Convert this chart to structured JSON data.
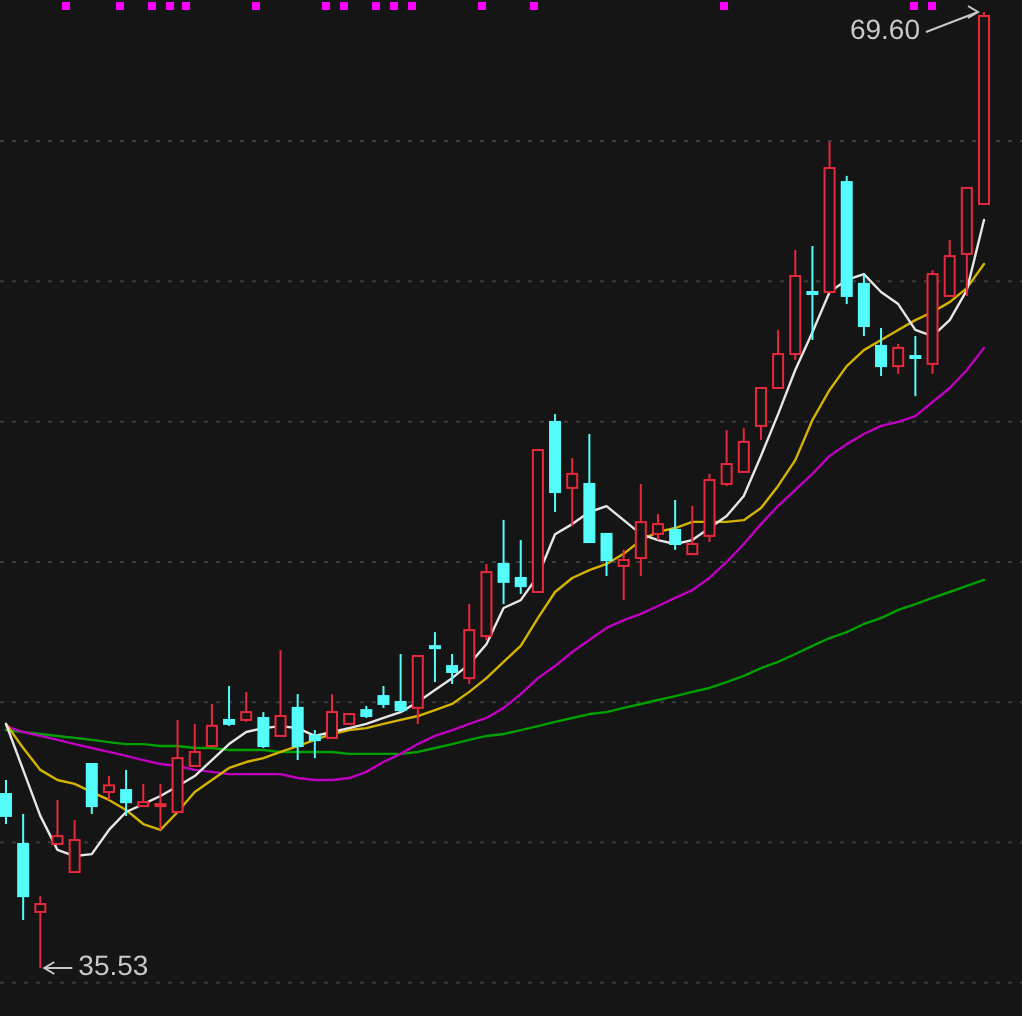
{
  "chart_data": {
    "type": "candlestick",
    "categories": [
      null,
      null,
      null,
      null,
      null,
      null,
      null,
      null,
      null,
      null,
      null,
      null,
      null,
      null,
      null,
      null,
      null,
      null,
      null,
      null,
      null,
      null,
      null,
      null,
      null,
      null,
      null,
      null,
      null,
      null,
      null,
      null,
      null,
      null,
      null,
      null,
      null,
      null,
      null,
      null,
      null,
      null,
      null,
      null,
      null,
      null,
      null,
      null,
      null,
      null,
      null,
      null,
      null,
      null,
      null,
      null,
      null,
      null
    ],
    "ohlc": [
      [
        41.73,
        42.23,
        40.66,
        40.95
      ],
      [
        39.95,
        41.02,
        37.24,
        38.09
      ],
      [
        37.53,
        38.09,
        35.53,
        37.81
      ],
      [
        39.95,
        41.52,
        39.95,
        40.23
      ],
      [
        38.95,
        40.8,
        38.95,
        40.09
      ],
      [
        42.8,
        42.8,
        41.02,
        41.3
      ],
      [
        41.8,
        42.37,
        41.52,
        42.04
      ],
      [
        41.87,
        42.59,
        40.95,
        41.44
      ],
      [
        41.3,
        42.09,
        41.3,
        41.44
      ],
      [
        41.3,
        42.09,
        40.45,
        41.37
      ],
      [
        41.09,
        44.37,
        41.09,
        43.01
      ],
      [
        42.73,
        44.23,
        42.73,
        43.23
      ],
      [
        43.44,
        44.94,
        43.44,
        44.16
      ],
      [
        44.37,
        45.58,
        44.16,
        44.23
      ],
      [
        44.37,
        45.37,
        44.3,
        44.65
      ],
      [
        44.44,
        44.65,
        43.37,
        43.44
      ],
      [
        43.8,
        46.86,
        43.8,
        44.51
      ],
      [
        44.8,
        45.29,
        42.94,
        43.44
      ],
      [
        43.8,
        44.01,
        43.01,
        43.65
      ],
      [
        43.73,
        45.29,
        43.73,
        44.65
      ],
      [
        44.23,
        44.58,
        44.23,
        44.58
      ],
      [
        44.72,
        44.87,
        44.44,
        44.51
      ],
      [
        45.22,
        45.58,
        44.8,
        44.94
      ],
      [
        45.01,
        46.72,
        44.65,
        44.72
      ],
      [
        44.8,
        46.65,
        44.23,
        46.65
      ],
      [
        47.0,
        47.5,
        45.72,
        46.93
      ],
      [
        46.29,
        46.72,
        45.65,
        46.08
      ],
      [
        45.86,
        48.5,
        45.65,
        47.57
      ],
      [
        47.36,
        49.93,
        47.22,
        49.64
      ],
      [
        49.93,
        51.5,
        48.5,
        49.29
      ],
      [
        49.43,
        50.78,
        48.86,
        49.14
      ],
      [
        48.93,
        53.99,
        48.93,
        53.99
      ],
      [
        54.99,
        55.27,
        51.78,
        52.49
      ],
      [
        52.64,
        53.7,
        51.28,
        53.14
      ],
      [
        52.78,
        54.56,
        50.71,
        50.71
      ],
      [
        51.0,
        51.0,
        49.5,
        50.07
      ],
      [
        49.86,
        50.43,
        48.64,
        50.07
      ],
      [
        50.14,
        52.78,
        49.5,
        51.42
      ],
      [
        51.0,
        51.71,
        50.78,
        51.35
      ],
      [
        51.14,
        52.21,
        50.43,
        50.64
      ],
      [
        50.28,
        52.0,
        50.28,
        50.64
      ],
      [
        50.93,
        53.14,
        50.71,
        52.92
      ],
      [
        52.78,
        54.7,
        52.71,
        53.49
      ],
      [
        53.21,
        54.77,
        53.21,
        54.28
      ],
      [
        54.85,
        56.2,
        54.35,
        56.2
      ],
      [
        56.2,
        58.27,
        56.2,
        57.41
      ],
      [
        57.41,
        61.12,
        57.2,
        60.19
      ],
      [
        59.62,
        61.26,
        57.91,
        59.55
      ],
      [
        59.62,
        64.97,
        59.62,
        64.04
      ],
      [
        63.54,
        63.76,
        59.19,
        59.48
      ],
      [
        59.91,
        60.26,
        58.05,
        58.41
      ],
      [
        57.7,
        58.34,
        56.63,
        56.98
      ],
      [
        56.98,
        57.77,
        56.7,
        57.63
      ],
      [
        57.34,
        58.05,
        55.91,
        57.27
      ],
      [
        57.06,
        60.4,
        56.7,
        60.26
      ],
      [
        59.48,
        61.47,
        59.48,
        60.9
      ],
      [
        60.98,
        63.33,
        59.48,
        63.33
      ],
      [
        62.76,
        69.6,
        62.76,
        69.46
      ]
    ],
    "colors": [
      "#54fcfc",
      "#54fcfc",
      "#e8283c",
      "#e8283c",
      "#e8283c",
      "#54fcfc",
      "#e8283c",
      "#54fcfc",
      "#e8283c",
      "#e8283c",
      "#e8283c",
      "#e8283c",
      "#e8283c",
      "#54fcfc",
      "#e8283c",
      "#54fcfc",
      "#e8283c",
      "#54fcfc",
      "#54fcfc",
      "#e8283c",
      "#e8283c",
      "#54fcfc",
      "#54fcfc",
      "#54fcfc",
      "#e8283c",
      "#54fcfc",
      "#54fcfc",
      "#e8283c",
      "#e8283c",
      "#54fcfc",
      "#54fcfc",
      "#e8283c",
      "#54fcfc",
      "#e8283c",
      "#54fcfc",
      "#54fcfc",
      "#e8283c",
      "#e8283c",
      "#e8283c",
      "#54fcfc",
      "#e8283c",
      "#e8283c",
      "#e8283c",
      "#e8283c",
      "#e8283c",
      "#e8283c",
      "#e8283c",
      "#54fcfc",
      "#e8283c",
      "#54fcfc",
      "#54fcfc",
      "#54fcfc",
      "#e8283c",
      "#54fcfc",
      "#e8283c",
      "#e8283c",
      "#e8283c",
      "#e8283c"
    ],
    "series": [
      {
        "type": "line",
        "color": "#00a000",
        "values": [
          44.01,
          43.94,
          43.87,
          43.8,
          43.73,
          43.66,
          43.58,
          43.51,
          43.51,
          43.44,
          43.44,
          43.37,
          43.37,
          43.3,
          43.3,
          43.3,
          43.23,
          43.23,
          43.23,
          43.23,
          43.16,
          43.16,
          43.16,
          43.16,
          43.23,
          43.37,
          43.51,
          43.66,
          43.8,
          43.87,
          44.01,
          44.15,
          44.3,
          44.44,
          44.58,
          44.65,
          44.8,
          44.94,
          45.08,
          45.22,
          45.37,
          45.51,
          45.72,
          45.94,
          46.22,
          46.44,
          46.72,
          47.01,
          47.29,
          47.5,
          47.79,
          48.0,
          48.29,
          48.5,
          48.72,
          48.93,
          49.15,
          49.36
        ]
      },
      {
        "type": "line",
        "color": "#c000c0",
        "values": [
          44.15,
          43.94,
          43.8,
          43.66,
          43.51,
          43.37,
          43.23,
          43.09,
          42.94,
          42.8,
          42.73,
          42.59,
          42.52,
          42.44,
          42.44,
          42.44,
          42.44,
          42.3,
          42.23,
          42.23,
          42.3,
          42.52,
          42.87,
          43.16,
          43.51,
          43.8,
          44.01,
          44.23,
          44.44,
          44.8,
          45.29,
          45.86,
          46.29,
          46.79,
          47.22,
          47.65,
          47.93,
          48.15,
          48.43,
          48.72,
          49.0,
          49.43,
          50.0,
          50.64,
          51.35,
          52.0,
          52.57,
          53.14,
          53.78,
          54.2,
          54.56,
          54.85,
          54.99,
          55.2,
          55.7,
          56.2,
          56.84,
          57.63
        ]
      },
      {
        "type": "line",
        "color": "#d4b400",
        "values": [
          44.23,
          43.37,
          42.59,
          42.23,
          42.09,
          41.8,
          41.52,
          41.16,
          40.66,
          40.45,
          41.09,
          41.8,
          42.23,
          42.66,
          42.87,
          43.01,
          43.23,
          43.44,
          43.66,
          43.87,
          44.01,
          44.08,
          44.23,
          44.37,
          44.51,
          44.72,
          44.94,
          45.37,
          45.86,
          46.44,
          47.01,
          48.0,
          48.93,
          49.43,
          49.71,
          49.93,
          50.29,
          50.78,
          51.07,
          51.21,
          51.43,
          51.43,
          51.43,
          51.49,
          51.92,
          52.71,
          53.63,
          55.06,
          56.13,
          56.98,
          57.55,
          57.91,
          58.27,
          58.62,
          58.91,
          59.26,
          59.76,
          60.62
        ]
      },
      {
        "type": "line",
        "color": "#e6e6e6",
        "values": [
          44.23,
          42.59,
          40.95,
          39.74,
          39.52,
          39.59,
          40.45,
          41.09,
          41.37,
          41.66,
          42.01,
          42.37,
          42.94,
          43.51,
          43.94,
          44.08,
          44.15,
          44.08,
          43.8,
          43.94,
          44.08,
          44.23,
          44.44,
          44.65,
          45.01,
          45.44,
          45.86,
          46.36,
          47.07,
          48.36,
          48.64,
          49.5,
          50.99,
          51.35,
          51.78,
          51.99,
          51.49,
          50.99,
          50.78,
          50.64,
          50.78,
          51.21,
          51.64,
          52.35,
          53.78,
          55.27,
          56.84,
          58.19,
          59.62,
          60.05,
          60.26,
          59.62,
          59.19,
          58.27,
          58.05,
          58.62,
          59.69,
          62.19
        ]
      }
    ],
    "yticks": [
      {
        "value": 35,
        "label": null
      },
      {
        "value": 40,
        "label": null
      },
      {
        "value": 45,
        "label": null
      },
      {
        "value": 50,
        "label": null
      },
      {
        "value": 55,
        "label": null
      },
      {
        "value": 60,
        "label": null
      },
      {
        "value": 65,
        "label": null
      }
    ],
    "grid": "y",
    "annotations": [
      "69.60",
      "35.53"
    ]
  }
}
